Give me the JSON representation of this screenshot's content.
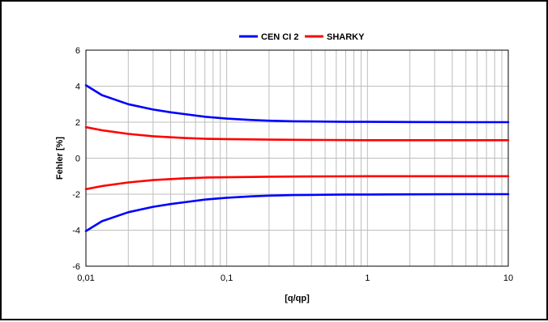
{
  "chart_data": {
    "type": "line",
    "xscale": "log",
    "xlabel": "[q/qp]",
    "ylabel": "Fehler [%]",
    "xlim": [
      0.01,
      10
    ],
    "ylim": [
      -6,
      6
    ],
    "x_tick_labels": [
      "0,01",
      "0,1",
      "1",
      "10"
    ],
    "y_tick_labels": [
      "6",
      "4",
      "2",
      "0",
      "-2",
      "-4",
      "-6"
    ],
    "grid": true,
    "legend_position": "top-center",
    "legend": [
      "CEN CI 2",
      "SHARKY"
    ],
    "series": [
      {
        "name": "CEN CI 2",
        "color": "#0000ff",
        "lines": [
          {
            "x": [
              0.01,
              0.013,
              0.02,
              0.03,
              0.04,
              0.05,
              0.07,
              0.1,
              0.15,
              0.2,
              0.3,
              0.5,
              0.7,
              1,
              2,
              5,
              10
            ],
            "y": [
              4.05,
              3.5,
              3.0,
              2.7,
              2.55,
              2.45,
              2.3,
              2.2,
              2.12,
              2.08,
              2.05,
              2.03,
              2.02,
              2.02,
              2.01,
              2.0,
              2.0
            ]
          },
          {
            "x": [
              0.01,
              0.013,
              0.02,
              0.03,
              0.04,
              0.05,
              0.07,
              0.1,
              0.15,
              0.2,
              0.3,
              0.5,
              0.7,
              1,
              2,
              5,
              10
            ],
            "y": [
              -4.05,
              -3.5,
              -3.0,
              -2.7,
              -2.55,
              -2.45,
              -2.3,
              -2.2,
              -2.12,
              -2.08,
              -2.05,
              -2.03,
              -2.02,
              -2.02,
              -2.01,
              -2.0,
              -2.0
            ]
          }
        ]
      },
      {
        "name": "SHARKY",
        "color": "#ff0000",
        "lines": [
          {
            "x": [
              0.01,
              0.013,
              0.02,
              0.03,
              0.05,
              0.07,
              0.1,
              0.2,
              0.3,
              0.5,
              1,
              2,
              5,
              10
            ],
            "y": [
              1.72,
              1.55,
              1.35,
              1.22,
              1.12,
              1.08,
              1.06,
              1.03,
              1.02,
              1.01,
              1.0,
              1.0,
              1.0,
              1.0
            ]
          },
          {
            "x": [
              0.01,
              0.013,
              0.02,
              0.03,
              0.05,
              0.07,
              0.1,
              0.2,
              0.3,
              0.5,
              1,
              2,
              5,
              10
            ],
            "y": [
              -1.72,
              -1.55,
              -1.35,
              -1.22,
              -1.12,
              -1.08,
              -1.06,
              -1.03,
              -1.02,
              -1.01,
              -1.0,
              -1.0,
              -1.0,
              -1.0
            ]
          }
        ]
      }
    ]
  }
}
